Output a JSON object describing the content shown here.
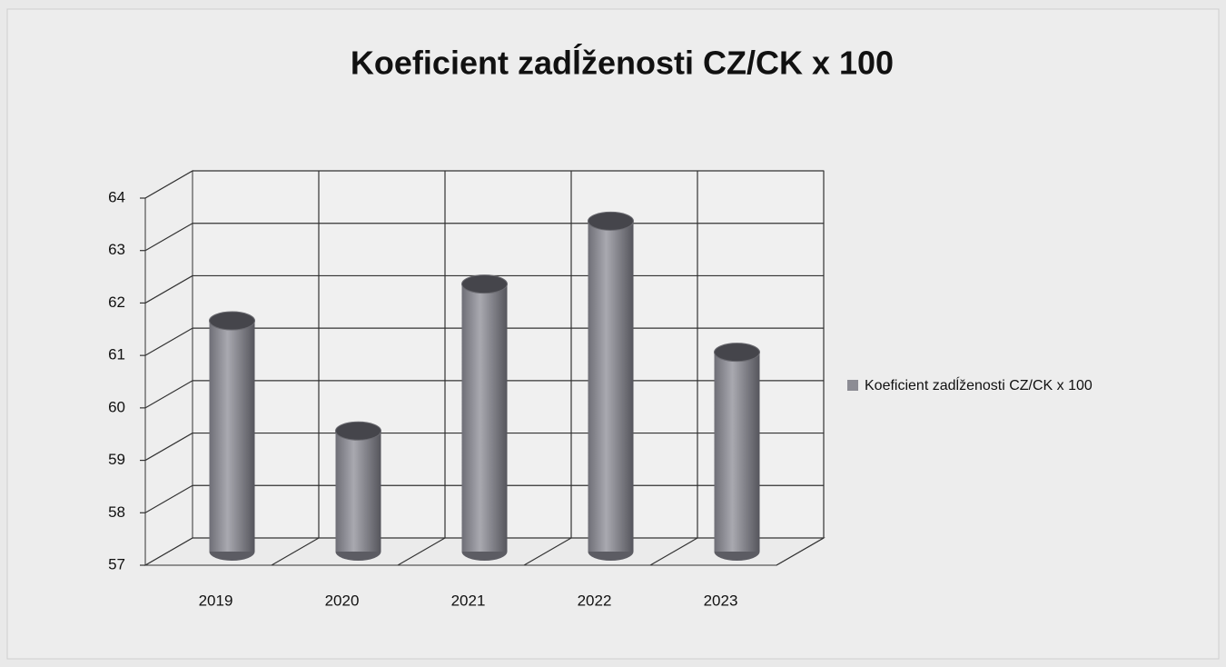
{
  "chart_data": {
    "type": "bar",
    "title": "Koeficient zadĺženosti CZ/CK x 100",
    "categories": [
      "2019",
      "2020",
      "2021",
      "2022",
      "2023"
    ],
    "series": [
      {
        "name": "Koeficient zadĺženosti CZ/CK x 100",
        "color": "#8c8c94",
        "values": [
          61.4,
          59.3,
          62.1,
          63.3,
          60.8
        ]
      }
    ],
    "ylim": [
      57,
      64
    ],
    "yticks": [
      57,
      58,
      59,
      60,
      61,
      62,
      63,
      64
    ],
    "grid": true,
    "legend": "right"
  }
}
